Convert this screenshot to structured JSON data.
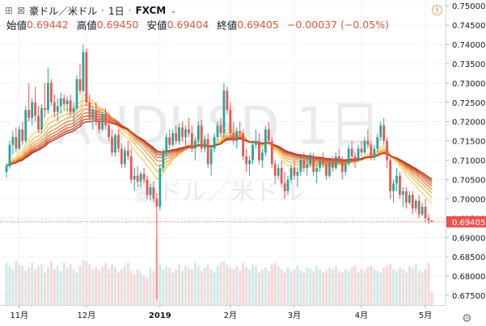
{
  "header": {
    "symbol_name": "豪ドル／米ドル",
    "separator": "·",
    "interval": "1日",
    "exchange": "FXCM",
    "dropdown_glyph": "⌄",
    "ohlc": [
      {
        "label": "始値",
        "value": "0.69442"
      },
      {
        "label": "高値",
        "value": "0.69450"
      },
      {
        "label": "安値",
        "value": "0.69404"
      },
      {
        "label": "終値",
        "value": "0.69405"
      }
    ],
    "change": "−0.00037 (−0.05%)",
    "alert_glyph": "!",
    "settings_glyph": "⚙"
  },
  "watermark": {
    "symbol": "AUDUSD",
    "interval": "1日",
    "name": "豪ドル／米ドル"
  },
  "colors": {
    "up": "#26a69a",
    "down": "#ef5350",
    "price_line": "#ef5350",
    "ribbon_dark": "#b9382a",
    "ribbon_light": "#f7d46d"
  },
  "chart_data": {
    "type": "candlestick",
    "symbol": "AUDUSD",
    "y_axis": {
      "ticks": [
        "0.75000",
        "0.74500",
        "0.74000",
        "0.73500",
        "0.73000",
        "0.72500",
        "0.72000",
        "0.71500",
        "0.71000",
        "0.70500",
        "0.70000",
        "0.69500",
        "0.69000",
        "0.68500",
        "0.68000",
        "0.67500"
      ],
      "range": [
        0.6725,
        0.7515
      ]
    },
    "x_axis": {
      "ticks": [
        "11月",
        "12月",
        "2019",
        "2月",
        "3月",
        "4月",
        "5月"
      ],
      "tick_index": [
        4,
        25,
        48,
        70,
        90,
        111,
        131
      ]
    },
    "last_price": "0.69405",
    "candles": [
      [
        0.707,
        0.7092,
        0.7055,
        0.7085
      ],
      [
        0.7085,
        0.715,
        0.7078,
        0.714
      ],
      [
        0.714,
        0.7175,
        0.7115,
        0.716
      ],
      [
        0.716,
        0.7185,
        0.712,
        0.713
      ],
      [
        0.713,
        0.719,
        0.7125,
        0.718
      ],
      [
        0.718,
        0.72,
        0.714,
        0.715
      ],
      [
        0.715,
        0.724,
        0.7145,
        0.723
      ],
      [
        0.723,
        0.73,
        0.72,
        0.721
      ],
      [
        0.721,
        0.726,
        0.719,
        0.725
      ],
      [
        0.725,
        0.729,
        0.72,
        0.7215
      ],
      [
        0.7215,
        0.724,
        0.717,
        0.718
      ],
      [
        0.718,
        0.7245,
        0.717,
        0.7235
      ],
      [
        0.7235,
        0.73,
        0.721,
        0.723
      ],
      [
        0.723,
        0.734,
        0.722,
        0.73
      ],
      [
        0.73,
        0.731,
        0.724,
        0.725
      ],
      [
        0.725,
        0.727,
        0.721,
        0.7225
      ],
      [
        0.7225,
        0.726,
        0.72,
        0.724
      ],
      [
        0.724,
        0.7275,
        0.722,
        0.726
      ],
      [
        0.726,
        0.727,
        0.723,
        0.7245
      ],
      [
        0.7245,
        0.7265,
        0.7225,
        0.7255
      ],
      [
        0.7255,
        0.727,
        0.7215,
        0.7225
      ],
      [
        0.7225,
        0.725,
        0.719,
        0.7235
      ],
      [
        0.7235,
        0.732,
        0.723,
        0.731
      ],
      [
        0.731,
        0.735,
        0.727,
        0.728
      ],
      [
        0.728,
        0.74,
        0.7275,
        0.738
      ],
      [
        0.738,
        0.739,
        0.724,
        0.725
      ],
      [
        0.725,
        0.727,
        0.72,
        0.721
      ],
      [
        0.721,
        0.724,
        0.718,
        0.723
      ],
      [
        0.723,
        0.725,
        0.719,
        0.72
      ],
      [
        0.72,
        0.723,
        0.717,
        0.718
      ],
      [
        0.718,
        0.7225,
        0.7175,
        0.722
      ],
      [
        0.722,
        0.7235,
        0.718,
        0.719
      ],
      [
        0.719,
        0.7215,
        0.715,
        0.716
      ],
      [
        0.716,
        0.718,
        0.711,
        0.712
      ],
      [
        0.712,
        0.717,
        0.711,
        0.7165
      ],
      [
        0.7165,
        0.718,
        0.712,
        0.713
      ],
      [
        0.713,
        0.7145,
        0.708,
        0.709
      ],
      [
        0.709,
        0.7135,
        0.708,
        0.7125
      ],
      [
        0.7125,
        0.715,
        0.71,
        0.711
      ],
      [
        0.711,
        0.713,
        0.704,
        0.705
      ],
      [
        0.705,
        0.708,
        0.702,
        0.706
      ],
      [
        0.706,
        0.7085,
        0.703,
        0.7045
      ],
      [
        0.7045,
        0.707,
        0.703,
        0.7065
      ],
      [
        0.7065,
        0.708,
        0.704,
        0.705
      ],
      [
        0.705,
        0.706,
        0.7,
        0.701
      ],
      [
        0.701,
        0.704,
        0.6995,
        0.703
      ],
      [
        0.703,
        0.7045,
        0.699,
        0.7
      ],
      [
        0.7,
        0.7015,
        0.674,
        0.698
      ],
      [
        0.698,
        0.709,
        0.697,
        0.708
      ],
      [
        0.708,
        0.713,
        0.707,
        0.712
      ],
      [
        0.712,
        0.717,
        0.711,
        0.716
      ],
      [
        0.716,
        0.718,
        0.713,
        0.714
      ],
      [
        0.714,
        0.718,
        0.7135,
        0.717
      ],
      [
        0.717,
        0.719,
        0.714,
        0.715
      ],
      [
        0.715,
        0.7195,
        0.714,
        0.7185
      ],
      [
        0.7185,
        0.72,
        0.715,
        0.716
      ],
      [
        0.716,
        0.719,
        0.713,
        0.718
      ],
      [
        0.718,
        0.721,
        0.716,
        0.717
      ],
      [
        0.717,
        0.719,
        0.712,
        0.713
      ],
      [
        0.713,
        0.716,
        0.71,
        0.715
      ],
      [
        0.715,
        0.72,
        0.714,
        0.719
      ],
      [
        0.719,
        0.7205,
        0.712,
        0.713
      ],
      [
        0.713,
        0.7165,
        0.712,
        0.7155
      ],
      [
        0.7155,
        0.717,
        0.708,
        0.709
      ],
      [
        0.709,
        0.714,
        0.706,
        0.713
      ],
      [
        0.713,
        0.717,
        0.712,
        0.716
      ],
      [
        0.716,
        0.72,
        0.715,
        0.719
      ],
      [
        0.719,
        0.721,
        0.716,
        0.717
      ],
      [
        0.717,
        0.73,
        0.716,
        0.728
      ],
      [
        0.728,
        0.729,
        0.722,
        0.723
      ],
      [
        0.723,
        0.725,
        0.716,
        0.717
      ],
      [
        0.717,
        0.72,
        0.714,
        0.715
      ],
      [
        0.715,
        0.7185,
        0.713,
        0.7175
      ],
      [
        0.7175,
        0.72,
        0.716,
        0.717
      ],
      [
        0.717,
        0.718,
        0.71,
        0.711
      ],
      [
        0.711,
        0.713,
        0.707,
        0.709
      ],
      [
        0.709,
        0.711,
        0.706,
        0.71
      ],
      [
        0.71,
        0.715,
        0.709,
        0.714
      ],
      [
        0.714,
        0.718,
        0.713,
        0.715
      ],
      [
        0.715,
        0.717,
        0.709,
        0.71
      ],
      [
        0.71,
        0.713,
        0.708,
        0.712
      ],
      [
        0.712,
        0.719,
        0.711,
        0.718
      ],
      [
        0.718,
        0.72,
        0.714,
        0.715
      ],
      [
        0.715,
        0.716,
        0.708,
        0.709
      ],
      [
        0.709,
        0.71,
        0.704,
        0.706
      ],
      [
        0.706,
        0.709,
        0.705,
        0.708
      ],
      [
        0.708,
        0.71,
        0.703,
        0.704
      ],
      [
        0.704,
        0.707,
        0.7,
        0.702
      ],
      [
        0.702,
        0.706,
        0.701,
        0.705
      ],
      [
        0.705,
        0.709,
        0.704,
        0.708
      ],
      [
        0.708,
        0.71,
        0.705,
        0.706
      ],
      [
        0.706,
        0.708,
        0.703,
        0.707
      ],
      [
        0.707,
        0.711,
        0.706,
        0.71
      ],
      [
        0.71,
        0.712,
        0.707,
        0.708
      ],
      [
        0.708,
        0.711,
        0.706,
        0.709
      ],
      [
        0.709,
        0.712,
        0.708,
        0.711
      ],
      [
        0.711,
        0.712,
        0.706,
        0.707
      ],
      [
        0.707,
        0.709,
        0.704,
        0.708
      ],
      [
        0.708,
        0.711,
        0.707,
        0.71
      ],
      [
        0.71,
        0.712,
        0.708,
        0.709
      ],
      [
        0.709,
        0.71,
        0.705,
        0.706
      ],
      [
        0.706,
        0.71,
        0.7055,
        0.7095
      ],
      [
        0.7095,
        0.711,
        0.707,
        0.708
      ],
      [
        0.708,
        0.712,
        0.7075,
        0.711
      ],
      [
        0.711,
        0.713,
        0.709,
        0.71
      ],
      [
        0.71,
        0.711,
        0.705,
        0.707
      ],
      [
        0.707,
        0.71,
        0.706,
        0.709
      ],
      [
        0.709,
        0.714,
        0.7085,
        0.713
      ],
      [
        0.713,
        0.715,
        0.71,
        0.711
      ],
      [
        0.711,
        0.712,
        0.708,
        0.71
      ],
      [
        0.71,
        0.714,
        0.7095,
        0.713
      ],
      [
        0.713,
        0.715,
        0.711,
        0.712
      ],
      [
        0.712,
        0.716,
        0.7115,
        0.715
      ],
      [
        0.715,
        0.718,
        0.713,
        0.714
      ],
      [
        0.714,
        0.715,
        0.71,
        0.711
      ],
      [
        0.711,
        0.714,
        0.71,
        0.713
      ],
      [
        0.713,
        0.717,
        0.712,
        0.716
      ],
      [
        0.716,
        0.72,
        0.715,
        0.719
      ],
      [
        0.719,
        0.721,
        0.714,
        0.715
      ],
      [
        0.715,
        0.716,
        0.708,
        0.71
      ],
      [
        0.71,
        0.711,
        0.7,
        0.702
      ],
      [
        0.702,
        0.705,
        0.699,
        0.704
      ],
      [
        0.704,
        0.708,
        0.702,
        0.706
      ],
      [
        0.706,
        0.707,
        0.7,
        0.701
      ],
      [
        0.701,
        0.703,
        0.698,
        0.702
      ],
      [
        0.702,
        0.703,
        0.6975,
        0.699
      ],
      [
        0.699,
        0.702,
        0.6985,
        0.701
      ],
      [
        0.701,
        0.702,
        0.696,
        0.6975
      ],
      [
        0.6975,
        0.7,
        0.6965,
        0.6995
      ],
      [
        0.6995,
        0.701,
        0.695,
        0.696
      ],
      [
        0.696,
        0.699,
        0.6955,
        0.698
      ],
      [
        0.698,
        0.7,
        0.694,
        0.695
      ],
      [
        0.695,
        0.696,
        0.6935,
        0.6944
      ],
      [
        0.69442,
        0.6945,
        0.69404,
        0.69405
      ]
    ],
    "volume": [
      26,
      24,
      22,
      27,
      25,
      24,
      21,
      23,
      26,
      22,
      24,
      25,
      20,
      23,
      27,
      22,
      24,
      21,
      26,
      23,
      25,
      22,
      20,
      24,
      28,
      27,
      25,
      22,
      23,
      21,
      24,
      26,
      22,
      25,
      23,
      20,
      22,
      24,
      26,
      21,
      19,
      22,
      20,
      18,
      17,
      23,
      21,
      41,
      25,
      22,
      24,
      23,
      20,
      22,
      25,
      21,
      24,
      23,
      22,
      26,
      24,
      21,
      23,
      25,
      22,
      20,
      24,
      26,
      27,
      25,
      23,
      22,
      24,
      21,
      26,
      23,
      22,
      25,
      24,
      20,
      22,
      23,
      21,
      25,
      26,
      24,
      22,
      20,
      23,
      21,
      22,
      24,
      21,
      20,
      23,
      22,
      21,
      24,
      22,
      20,
      21,
      23,
      22,
      24,
      21,
      20,
      22,
      21,
      23,
      24,
      20,
      22,
      21,
      23,
      24,
      22,
      21,
      20,
      23,
      24,
      25,
      22,
      21,
      23,
      22,
      20,
      24,
      23,
      25,
      21,
      20,
      22,
      26,
      8
    ],
    "volume_range": [
      0,
      60
    ]
  }
}
